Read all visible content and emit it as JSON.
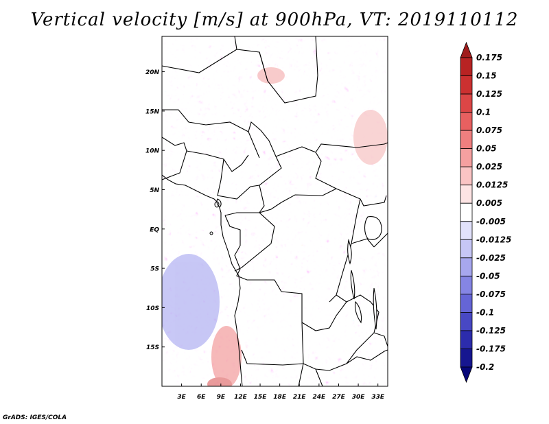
{
  "chart_data": {
    "type": "heatmap",
    "title": "Vertical velocity [m/s] at 900hPa, VT: 2019110112",
    "x_ticks": [
      "3E",
      "6E",
      "9E",
      "12E",
      "15E",
      "18E",
      "21E",
      "24E",
      "27E",
      "30E",
      "33E"
    ],
    "x_tick_values": [
      3,
      6,
      9,
      12,
      15,
      18,
      21,
      24,
      27,
      30,
      33
    ],
    "y_ticks": [
      "20N",
      "15N",
      "10N",
      "5N",
      "EQ",
      "5S",
      "10S",
      "15S"
    ],
    "y_tick_values": [
      20,
      15,
      10,
      5,
      0,
      -5,
      -10,
      -15
    ],
    "lon_range": [
      0,
      34.5
    ],
    "lat_range": [
      -20,
      24.5
    ],
    "colorbar": {
      "labels": [
        "0.175",
        "0.15",
        "0.125",
        "0.1",
        "0.075",
        "0.05",
        "0.025",
        "0.0125",
        "0.005",
        "-0.005",
        "-0.0125",
        "-0.025",
        "-0.05",
        "-0.075",
        "-0.1",
        "-0.125",
        "-0.175",
        "-0.2"
      ],
      "colors": [
        "#a01c1c",
        "#b82323",
        "#cc3030",
        "#dc4646",
        "#e86060",
        "#ef7f7f",
        "#f5a0a0",
        "#fac4c4",
        "#fde4e4",
        "#ffffff",
        "#e2e2fb",
        "#c6c6f5",
        "#a7a7ee",
        "#8585e4",
        "#6565d6",
        "#4848c4",
        "#2c2cac",
        "#161690",
        "#07077a"
      ]
    }
  },
  "footer": {
    "credit": "GrADS: IGES/COLA"
  }
}
